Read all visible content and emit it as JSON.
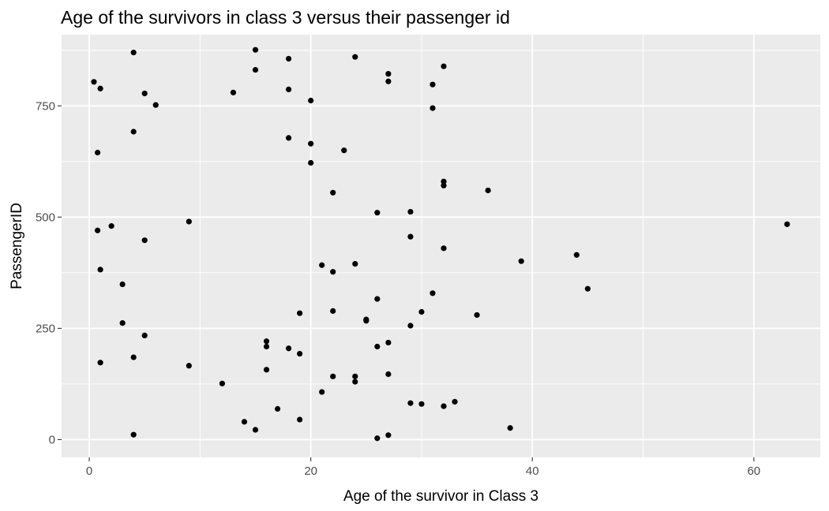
{
  "chart_data": {
    "type": "scatter",
    "title": "Age of the survivors in class 3 versus their passenger id",
    "xlabel": "Age of the survivor in Class 3",
    "ylabel": "PassengerID",
    "xlim": [
      -2.5,
      66
    ],
    "ylim": [
      -40,
      910
    ],
    "xticks": [
      0,
      20,
      40,
      60
    ],
    "xtick_labels": [
      "0",
      "20",
      "40",
      "60"
    ],
    "yticks": [
      0,
      250,
      500,
      750
    ],
    "ytick_labels": [
      "0",
      "250",
      "500",
      "750"
    ],
    "grid": true,
    "panel_background": "#ebebeb",
    "gridline_color": "#ffffff",
    "point_color": "#000000",
    "points": [
      {
        "x": 0.42,
        "y": 804
      },
      {
        "x": 1,
        "y": 789
      },
      {
        "x": 0.75,
        "y": 645
      },
      {
        "x": 0.75,
        "y": 470
      },
      {
        "x": 1,
        "y": 382
      },
      {
        "x": 1,
        "y": 173
      },
      {
        "x": 2,
        "y": 480
      },
      {
        "x": 3,
        "y": 349
      },
      {
        "x": 3,
        "y": 262
      },
      {
        "x": 4,
        "y": 870
      },
      {
        "x": 4,
        "y": 692
      },
      {
        "x": 4,
        "y": 185
      },
      {
        "x": 4,
        "y": 11
      },
      {
        "x": 5,
        "y": 778
      },
      {
        "x": 5,
        "y": 448
      },
      {
        "x": 5,
        "y": 234
      },
      {
        "x": 6,
        "y": 752
      },
      {
        "x": 9,
        "y": 490
      },
      {
        "x": 9,
        "y": 166
      },
      {
        "x": 12,
        "y": 126
      },
      {
        "x": 13,
        "y": 780
      },
      {
        "x": 14,
        "y": 40
      },
      {
        "x": 15,
        "y": 876
      },
      {
        "x": 15,
        "y": 831
      },
      {
        "x": 15,
        "y": 22
      },
      {
        "x": 16,
        "y": 221
      },
      {
        "x": 16,
        "y": 209
      },
      {
        "x": 16,
        "y": 157
      },
      {
        "x": 17,
        "y": 69
      },
      {
        "x": 18,
        "y": 856
      },
      {
        "x": 18,
        "y": 787
      },
      {
        "x": 18,
        "y": 678
      },
      {
        "x": 18,
        "y": 205
      },
      {
        "x": 19,
        "y": 284
      },
      {
        "x": 19,
        "y": 193
      },
      {
        "x": 19,
        "y": 45
      },
      {
        "x": 20,
        "y": 762
      },
      {
        "x": 20,
        "y": 665
      },
      {
        "x": 20,
        "y": 622
      },
      {
        "x": 21,
        "y": 392
      },
      {
        "x": 21,
        "y": 107
      },
      {
        "x": 22,
        "y": 555
      },
      {
        "x": 22,
        "y": 377
      },
      {
        "x": 22,
        "y": 289
      },
      {
        "x": 22,
        "y": 142
      },
      {
        "x": 23,
        "y": 650
      },
      {
        "x": 24,
        "y": 860
      },
      {
        "x": 24,
        "y": 395
      },
      {
        "x": 24,
        "y": 142
      },
      {
        "x": 24,
        "y": 130
      },
      {
        "x": 25,
        "y": 270
      },
      {
        "x": 25,
        "y": 267
      },
      {
        "x": 26,
        "y": 510
      },
      {
        "x": 26,
        "y": 316
      },
      {
        "x": 26,
        "y": 209
      },
      {
        "x": 26,
        "y": 3
      },
      {
        "x": 27,
        "y": 822
      },
      {
        "x": 27,
        "y": 805
      },
      {
        "x": 27,
        "y": 218
      },
      {
        "x": 27,
        "y": 147
      },
      {
        "x": 27,
        "y": 10
      },
      {
        "x": 29,
        "y": 512
      },
      {
        "x": 29,
        "y": 456
      },
      {
        "x": 29,
        "y": 256
      },
      {
        "x": 29,
        "y": 82
      },
      {
        "x": 30,
        "y": 287
      },
      {
        "x": 30,
        "y": 80
      },
      {
        "x": 31,
        "y": 798
      },
      {
        "x": 31,
        "y": 745
      },
      {
        "x": 31,
        "y": 329
      },
      {
        "x": 32,
        "y": 839
      },
      {
        "x": 32,
        "y": 580
      },
      {
        "x": 32,
        "y": 571
      },
      {
        "x": 32,
        "y": 430
      },
      {
        "x": 32,
        "y": 75
      },
      {
        "x": 33,
        "y": 85
      },
      {
        "x": 35,
        "y": 280
      },
      {
        "x": 36,
        "y": 560
      },
      {
        "x": 38,
        "y": 26
      },
      {
        "x": 39,
        "y": 401
      },
      {
        "x": 44,
        "y": 415
      },
      {
        "x": 45,
        "y": 339
      },
      {
        "x": 63,
        "y": 484
      }
    ]
  }
}
